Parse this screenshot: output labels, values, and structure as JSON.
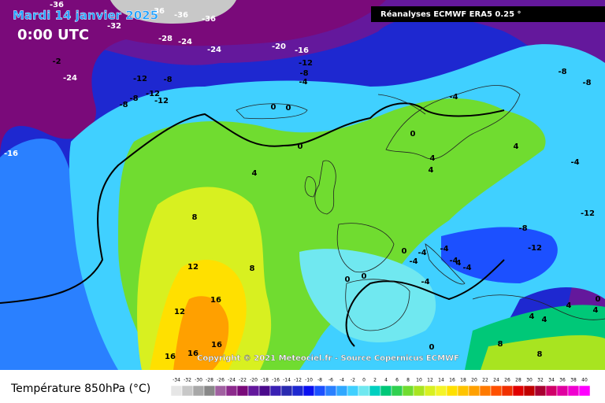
{
  "header": {
    "date": "Mardi 14 janvier 2025",
    "time": "0:00 UTC",
    "source": "Réanalyses ECMWF ERA5 0.25 °"
  },
  "copyright": "Copyright © 2021 Meteociel.fr - Source Copernicus ECMWF",
  "legend": {
    "title": "Température 850hPa (°C)",
    "labels": [
      -34,
      -32,
      -30,
      -28,
      -26,
      -24,
      -22,
      -20,
      -18,
      -16,
      -14,
      -12,
      -10,
      -8,
      -6,
      -4,
      -2,
      0,
      2,
      4,
      6,
      8,
      10,
      12,
      14,
      16,
      18,
      20,
      22,
      24,
      26,
      28,
      30,
      32,
      34,
      36,
      38,
      40
    ],
    "colors": [
      "#e6e6e6",
      "#c8c8c8",
      "#a8a8a8",
      "#888888",
      "#a060a0",
      "#8c2a8c",
      "#7a0a7a",
      "#64189c",
      "#4b0a8c",
      "#3a20b4",
      "#2a2ab0",
      "#1e28d0",
      "#0a10f0",
      "#1c50ff",
      "#2a80ff",
      "#30a8ff",
      "#40d0ff",
      "#70e8f0",
      "#00d0c0",
      "#00c878",
      "#30d050",
      "#70dc30",
      "#a8e420",
      "#d8f020",
      "#f4f428",
      "#ffe000",
      "#ffc400",
      "#ffa000",
      "#ff7a00",
      "#ff5000",
      "#f03000",
      "#e00000",
      "#c00000",
      "#a80030",
      "#d00068",
      "#e000a0",
      "#f000d0",
      "#ff00ff"
    ]
  },
  "map": {
    "contour_labels": [
      -36,
      -36,
      -36,
      -36,
      -32,
      -28,
      -24,
      -24,
      -20,
      -16,
      -12,
      -8,
      -4,
      -2,
      -24,
      -12,
      -8,
      -12,
      -8,
      -12,
      -8,
      -16,
      0,
      0,
      0,
      4,
      8,
      12,
      8,
      16,
      12,
      16,
      16,
      16,
      0,
      0,
      -4,
      -8,
      -8,
      0,
      4,
      -4,
      4,
      4,
      -12,
      -8,
      -12,
      -4,
      -4,
      -4,
      -4,
      -4,
      -4,
      4,
      0,
      0,
      4,
      0,
      4,
      4,
      8,
      8,
      4
    ]
  }
}
